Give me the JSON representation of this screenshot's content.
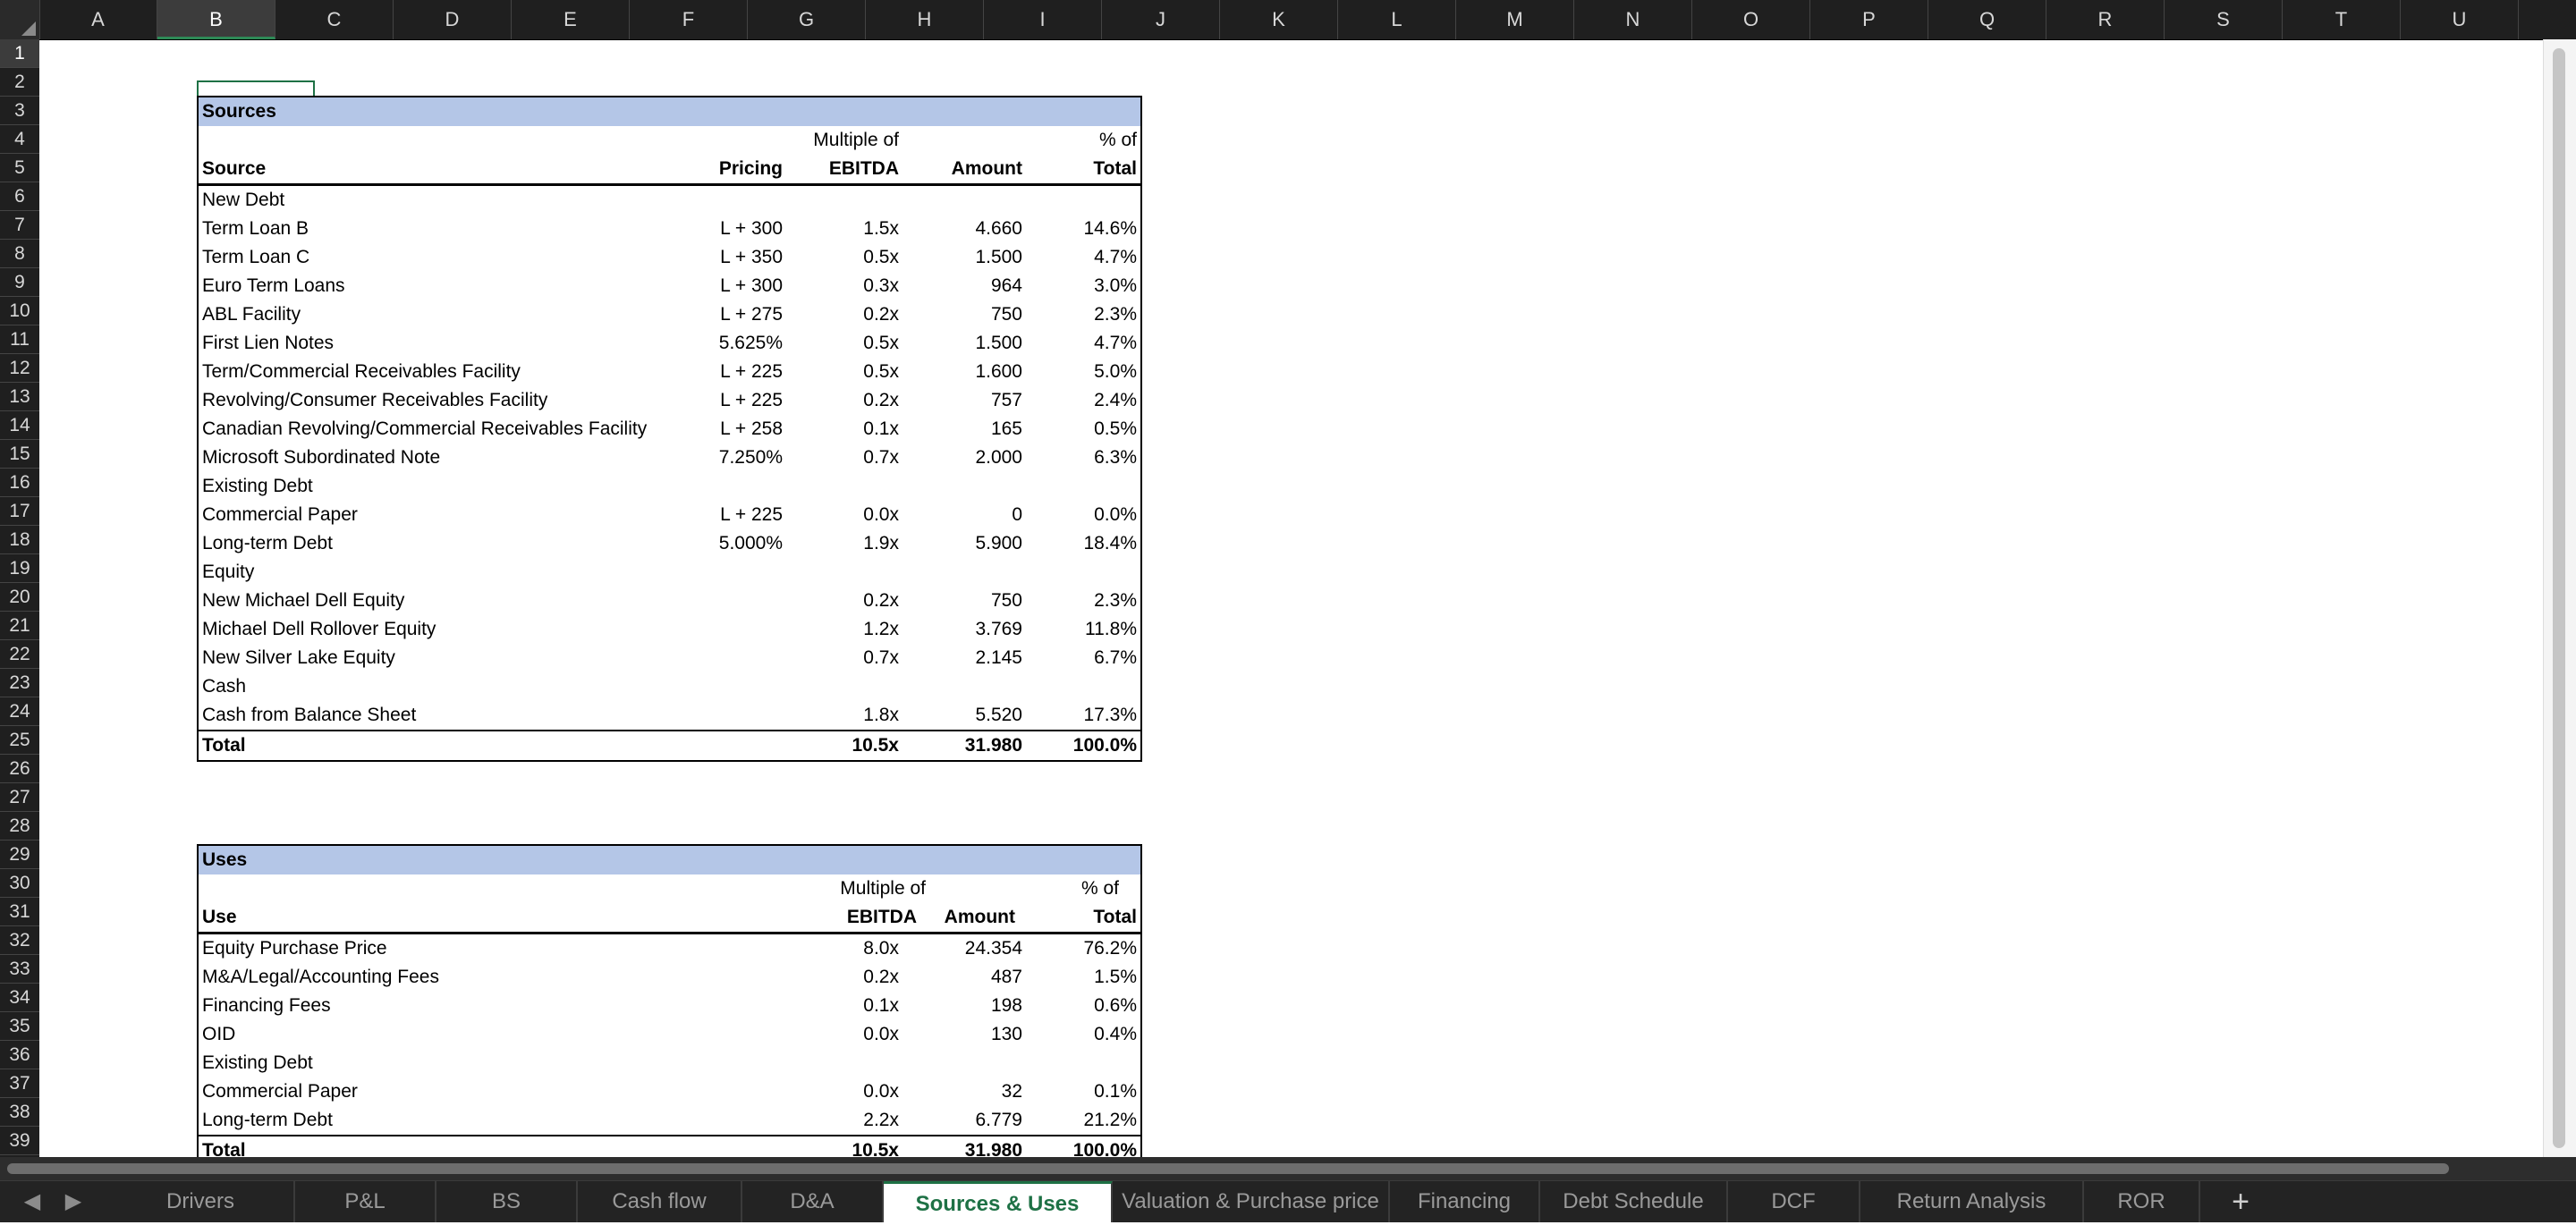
{
  "columns": [
    "A",
    "B",
    "C",
    "D",
    "E",
    "F",
    "G",
    "H",
    "I",
    "J",
    "K",
    "L",
    "M",
    "N",
    "O",
    "P",
    "Q",
    "R",
    "S",
    "T",
    "U"
  ],
  "rows": [
    "1",
    "2",
    "3",
    "4",
    "5",
    "6",
    "7",
    "8",
    "9",
    "10",
    "11",
    "12",
    "13",
    "14",
    "15",
    "16",
    "17",
    "18",
    "19",
    "20",
    "21",
    "22",
    "23",
    "24",
    "25",
    "26",
    "27",
    "28",
    "29",
    "30",
    "31",
    "32",
    "33",
    "34",
    "35",
    "36",
    "37",
    "38",
    "39"
  ],
  "selected_column": "B",
  "selected_row": "1",
  "sources": {
    "title": "Sources",
    "header1": {
      "mult": "Multiple of",
      "pct": "% of"
    },
    "header2": {
      "label": "Source",
      "pricing": "Pricing",
      "mult": "EBITDA",
      "amount": "Amount",
      "pct": "Total"
    },
    "rows": [
      {
        "label": "New Debt",
        "pricing": "",
        "mult": "",
        "amount": "",
        "pct": ""
      },
      {
        "label": "Term Loan B",
        "pricing": "L + 300",
        "mult": "1.5x",
        "amount": "4.660",
        "pct": "14.6%"
      },
      {
        "label": "Term Loan C",
        "pricing": "L + 350",
        "mult": "0.5x",
        "amount": "1.500",
        "pct": "4.7%"
      },
      {
        "label": "Euro Term Loans",
        "pricing": "L + 300",
        "mult": "0.3x",
        "amount": "964",
        "pct": "3.0%"
      },
      {
        "label": "ABL Facility",
        "pricing": "L + 275",
        "mult": "0.2x",
        "amount": "750",
        "pct": "2.3%"
      },
      {
        "label": "First Lien Notes",
        "pricing": "5.625%",
        "mult": "0.5x",
        "amount": "1.500",
        "pct": "4.7%"
      },
      {
        "label": "Term/Commercial Receivables Facility",
        "pricing": "L + 225",
        "mult": "0.5x",
        "amount": "1.600",
        "pct": "5.0%"
      },
      {
        "label": "Revolving/Consumer Receivables Facility",
        "pricing": "L + 225",
        "mult": "0.2x",
        "amount": "757",
        "pct": "2.4%"
      },
      {
        "label": "Canadian Revolving/Commercial Receivables Facility",
        "pricing": "L + 258",
        "mult": "0.1x",
        "amount": "165",
        "pct": "0.5%"
      },
      {
        "label": "Microsoft Subordinated Note",
        "pricing": "7.250%",
        "mult": "0.7x",
        "amount": "2.000",
        "pct": "6.3%"
      },
      {
        "label": "Existing Debt",
        "pricing": "",
        "mult": "",
        "amount": "",
        "pct": ""
      },
      {
        "label": "Commercial Paper",
        "pricing": "L + 225",
        "mult": "0.0x",
        "amount": "0",
        "pct": "0.0%"
      },
      {
        "label": "Long-term Debt",
        "pricing": "5.000%",
        "mult": "1.9x",
        "amount": "5.900",
        "pct": "18.4%"
      },
      {
        "label": "Equity",
        "pricing": "",
        "mult": "",
        "amount": "",
        "pct": ""
      },
      {
        "label": "New Michael Dell Equity",
        "pricing": "",
        "mult": "0.2x",
        "amount": "750",
        "pct": "2.3%"
      },
      {
        "label": "Michael Dell Rollover Equity",
        "pricing": "",
        "mult": "1.2x",
        "amount": "3.769",
        "pct": "11.8%"
      },
      {
        "label": "New Silver Lake Equity",
        "pricing": "",
        "mult": "0.7x",
        "amount": "2.145",
        "pct": "6.7%"
      },
      {
        "label": "Cash",
        "pricing": "",
        "mult": "",
        "amount": "",
        "pct": ""
      },
      {
        "label": "Cash from Balance Sheet",
        "pricing": "",
        "mult": "1.8x",
        "amount": "5.520",
        "pct": "17.3%"
      }
    ],
    "total": {
      "label": "Total",
      "mult": "10.5x",
      "amount": "31.980",
      "pct": "100.0%"
    }
  },
  "uses": {
    "title": "Uses",
    "header1": {
      "mult": "Multiple of",
      "pct": "% of"
    },
    "header2": {
      "label": "Use",
      "mult": "EBITDA",
      "amount": "Amount",
      "pct": "Total"
    },
    "rows": [
      {
        "label": "Equity Purchase Price",
        "mult": "8.0x",
        "amount": "24.354",
        "pct": "76.2%"
      },
      {
        "label": "M&A/Legal/Accounting Fees",
        "mult": "0.2x",
        "amount": "487",
        "pct": "1.5%"
      },
      {
        "label": "Financing Fees",
        "mult": "0.1x",
        "amount": "198",
        "pct": "0.6%"
      },
      {
        "label": "OID",
        "mult": "0.0x",
        "amount": "130",
        "pct": "0.4%"
      },
      {
        "label": "Existing Debt",
        "mult": "",
        "amount": "",
        "pct": ""
      },
      {
        "label": "Commercial Paper",
        "mult": "0.0x",
        "amount": "32",
        "pct": "0.1%"
      },
      {
        "label": "Long-term Debt",
        "mult": "2.2x",
        "amount": "6.779",
        "pct": "21.2%"
      }
    ],
    "total": {
      "label": "Total",
      "mult": "10.5x",
      "amount": "31.980",
      "pct": "100.0%"
    }
  },
  "tabs": [
    "Drivers",
    "P&L",
    "BS",
    "Cash flow",
    "D&A",
    "Sources & Uses",
    "Valuation & Purchase price",
    "Financing",
    "Debt Schedule",
    "DCF",
    "Return Analysis",
    "ROR"
  ],
  "active_tab": "Sources & Uses",
  "add_tab_label": "+",
  "nav": {
    "prev": "◀",
    "next": "▶"
  },
  "colors": {
    "header_bg": "#1f1f1f",
    "table_title_bg": "#b4c6e7",
    "accent": "#1e7145"
  }
}
